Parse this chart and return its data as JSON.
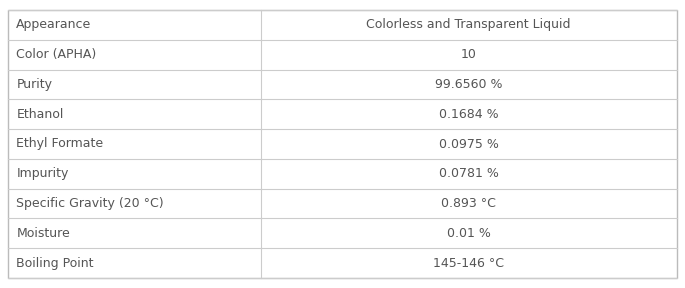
{
  "rows": [
    [
      "Appearance",
      "Colorless and Transparent Liquid"
    ],
    [
      "Color (APHA)",
      "10"
    ],
    [
      "Purity",
      "99.6560 %"
    ],
    [
      "Ethanol",
      "0.1684 %"
    ],
    [
      "Ethyl Formate",
      "0.0975 %"
    ],
    [
      "Impurity",
      "0.0781 %"
    ],
    [
      "Specific Gravity (20 °C)",
      "0.893 °C"
    ],
    [
      "Moisture",
      "0.01 %"
    ],
    [
      "Boiling Point",
      "145-146 °C"
    ]
  ],
  "col_split": 0.38,
  "bg_color": "#ffffff",
  "line_color": "#cccccc",
  "text_color": "#555555",
  "font_size": 9,
  "outer_border_color": "#bbbbbb",
  "fig_width": 6.85,
  "fig_height": 2.88
}
